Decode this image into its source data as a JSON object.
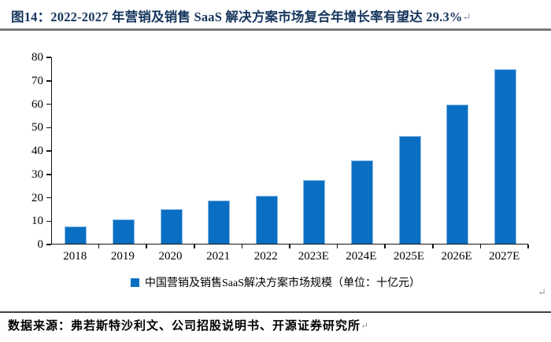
{
  "header": {
    "title": "图14：2022-2027 年营销及销售 SaaS 解决方案市场复合年增长率有望达 29.3%"
  },
  "marks": {
    "paragraph_return": "↵"
  },
  "chart_data": {
    "type": "bar",
    "categories": [
      "2018",
      "2019",
      "2020",
      "2021",
      "2022",
      "2023E",
      "2024E",
      "2025E",
      "2026E",
      "2027E"
    ],
    "values": [
      7.4,
      10.5,
      14.7,
      18.6,
      20.6,
      27.2,
      35.7,
      46.1,
      59.6,
      74.5
    ],
    "title": "2022-2027 年营销及销售 SaaS 解决方案市场复合年增长率有望达 29.3%",
    "xlabel": "",
    "ylabel": "",
    "ylim": [
      0,
      80
    ],
    "yticks": [
      0,
      10,
      20,
      30,
      40,
      50,
      60,
      70,
      80
    ],
    "grid": false,
    "legend": "中国营销及销售SaaS解决方案市场规模（单位：十亿元）",
    "legend_position": "bottom",
    "bar_color": "#0a6fc2",
    "bar_border_color": "#8ab9e8",
    "axis_color": "#141414"
  },
  "colors": {
    "title_text": "#17365d",
    "accent_blue": "#0a6fc2",
    "rule_gray": "#4a4a4a"
  },
  "footer": {
    "source": "数据来源：弗若斯特沙利文、公司招股说明书、开源证券研究所"
  }
}
